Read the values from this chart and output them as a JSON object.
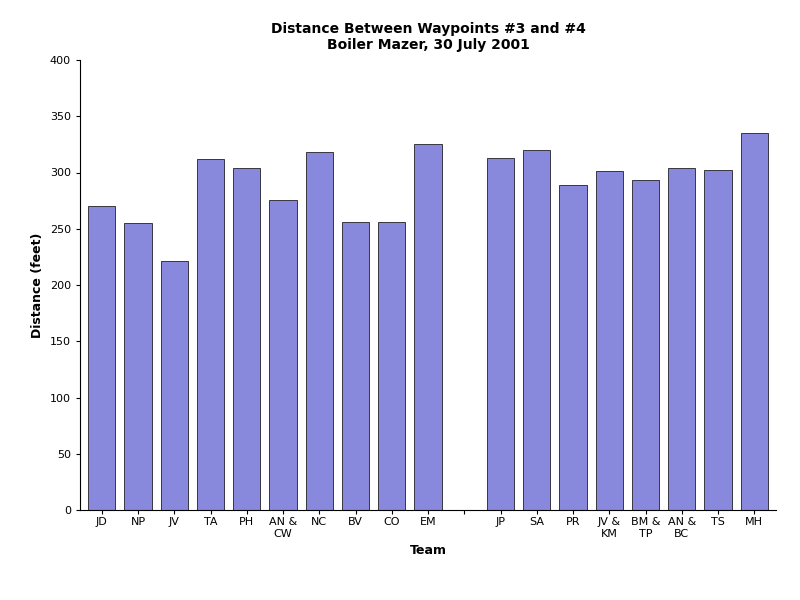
{
  "title_line1": "Distance Between Waypoints #3 and #4",
  "title_line2": "Boiler Mazer, 30 July 2001",
  "xlabel": "Team",
  "ylabel": "Distance (feet)",
  "categories": [
    "JD",
    "NP",
    "JV",
    "TA",
    "PH",
    "AN &\nCW",
    "NC",
    "BV",
    "CO",
    "EM",
    "",
    "JP",
    "SA",
    "PR",
    "JV &\nKM",
    "BM &\nTP",
    "AN &\nBC",
    "TS",
    "MH"
  ],
  "values": [
    270,
    255,
    221,
    312,
    304,
    276,
    318,
    256,
    256,
    325,
    0,
    313,
    320,
    289,
    301,
    293,
    304,
    302,
    335
  ],
  "bar_color": "#8888dd",
  "bar_edgecolor": "#000000",
  "ylim": [
    0,
    400
  ],
  "yticks": [
    0,
    50,
    100,
    150,
    200,
    250,
    300,
    350,
    400
  ],
  "title_fontsize": 10,
  "axis_label_fontsize": 9,
  "tick_fontsize": 8,
  "background_color": "#ffffff"
}
